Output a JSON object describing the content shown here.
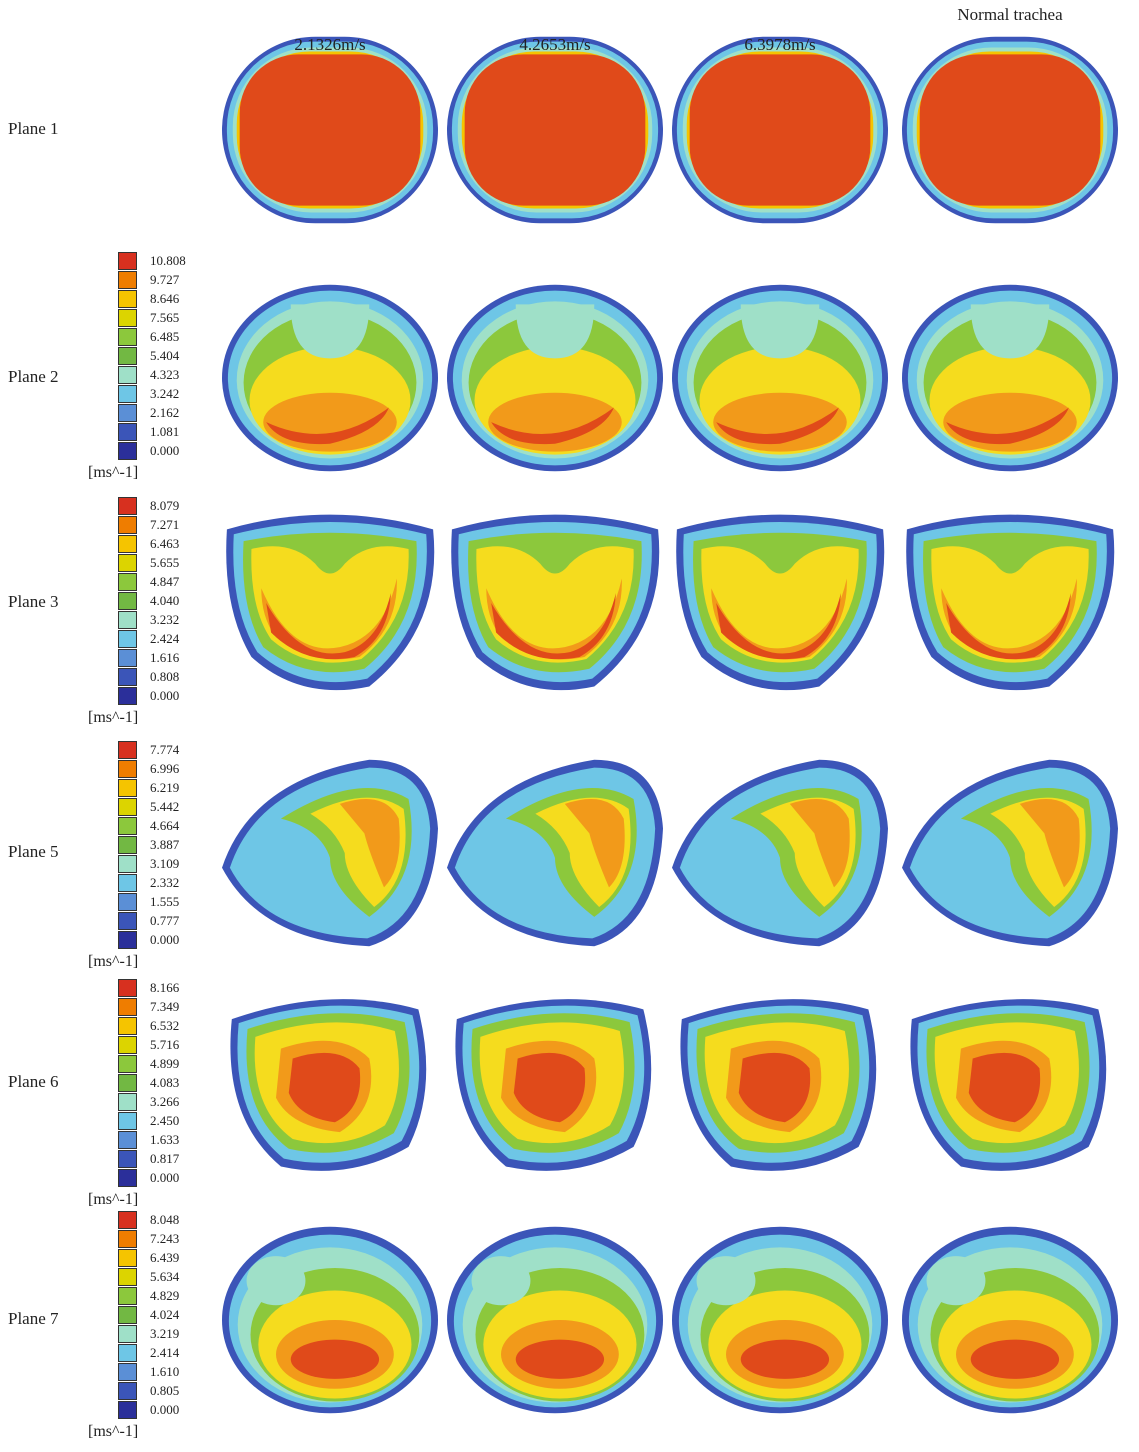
{
  "columns": [
    "2.1326m/s",
    "4.2653m/s",
    "6.3978m/s",
    "Normal trachea"
  ],
  "rows": [
    "Plane 1",
    "Plane 2",
    "Plane 3",
    "Plane 5",
    "Plane 6",
    "Plane 7"
  ],
  "legends": [
    {
      "labels": [
        "10.808",
        "9.727",
        "8.646",
        "7.565",
        "6.485",
        "5.404",
        "4.323",
        "3.242",
        "2.162",
        "1.081",
        "0.000"
      ],
      "unit": "[ms^-1]"
    },
    {
      "labels": [
        "8.079",
        "7.271",
        "6.463",
        "5.655",
        "4.847",
        "4.040",
        "3.232",
        "2.424",
        "1.616",
        "0.808",
        "0.000"
      ],
      "unit": "[ms^-1]"
    },
    {
      "labels": [
        "7.774",
        "6.996",
        "6.219",
        "5.442",
        "4.664",
        "3.887",
        "3.109",
        "2.332",
        "1.555",
        "0.777",
        "0.000"
      ],
      "unit": "[ms^-1]"
    },
    {
      "labels": [
        "8.166",
        "7.349",
        "6.532",
        "5.716",
        "4.899",
        "4.083",
        "3.266",
        "2.450",
        "1.633",
        "0.817",
        "0.000"
      ],
      "unit": "[ms^-1]"
    },
    {
      "labels": [
        "8.048",
        "7.243",
        "6.439",
        "5.634",
        "4.829",
        "4.024",
        "3.219",
        "2.414",
        "1.610",
        "0.805",
        "0.000"
      ],
      "unit": "[ms^-1]"
    }
  ]
}
